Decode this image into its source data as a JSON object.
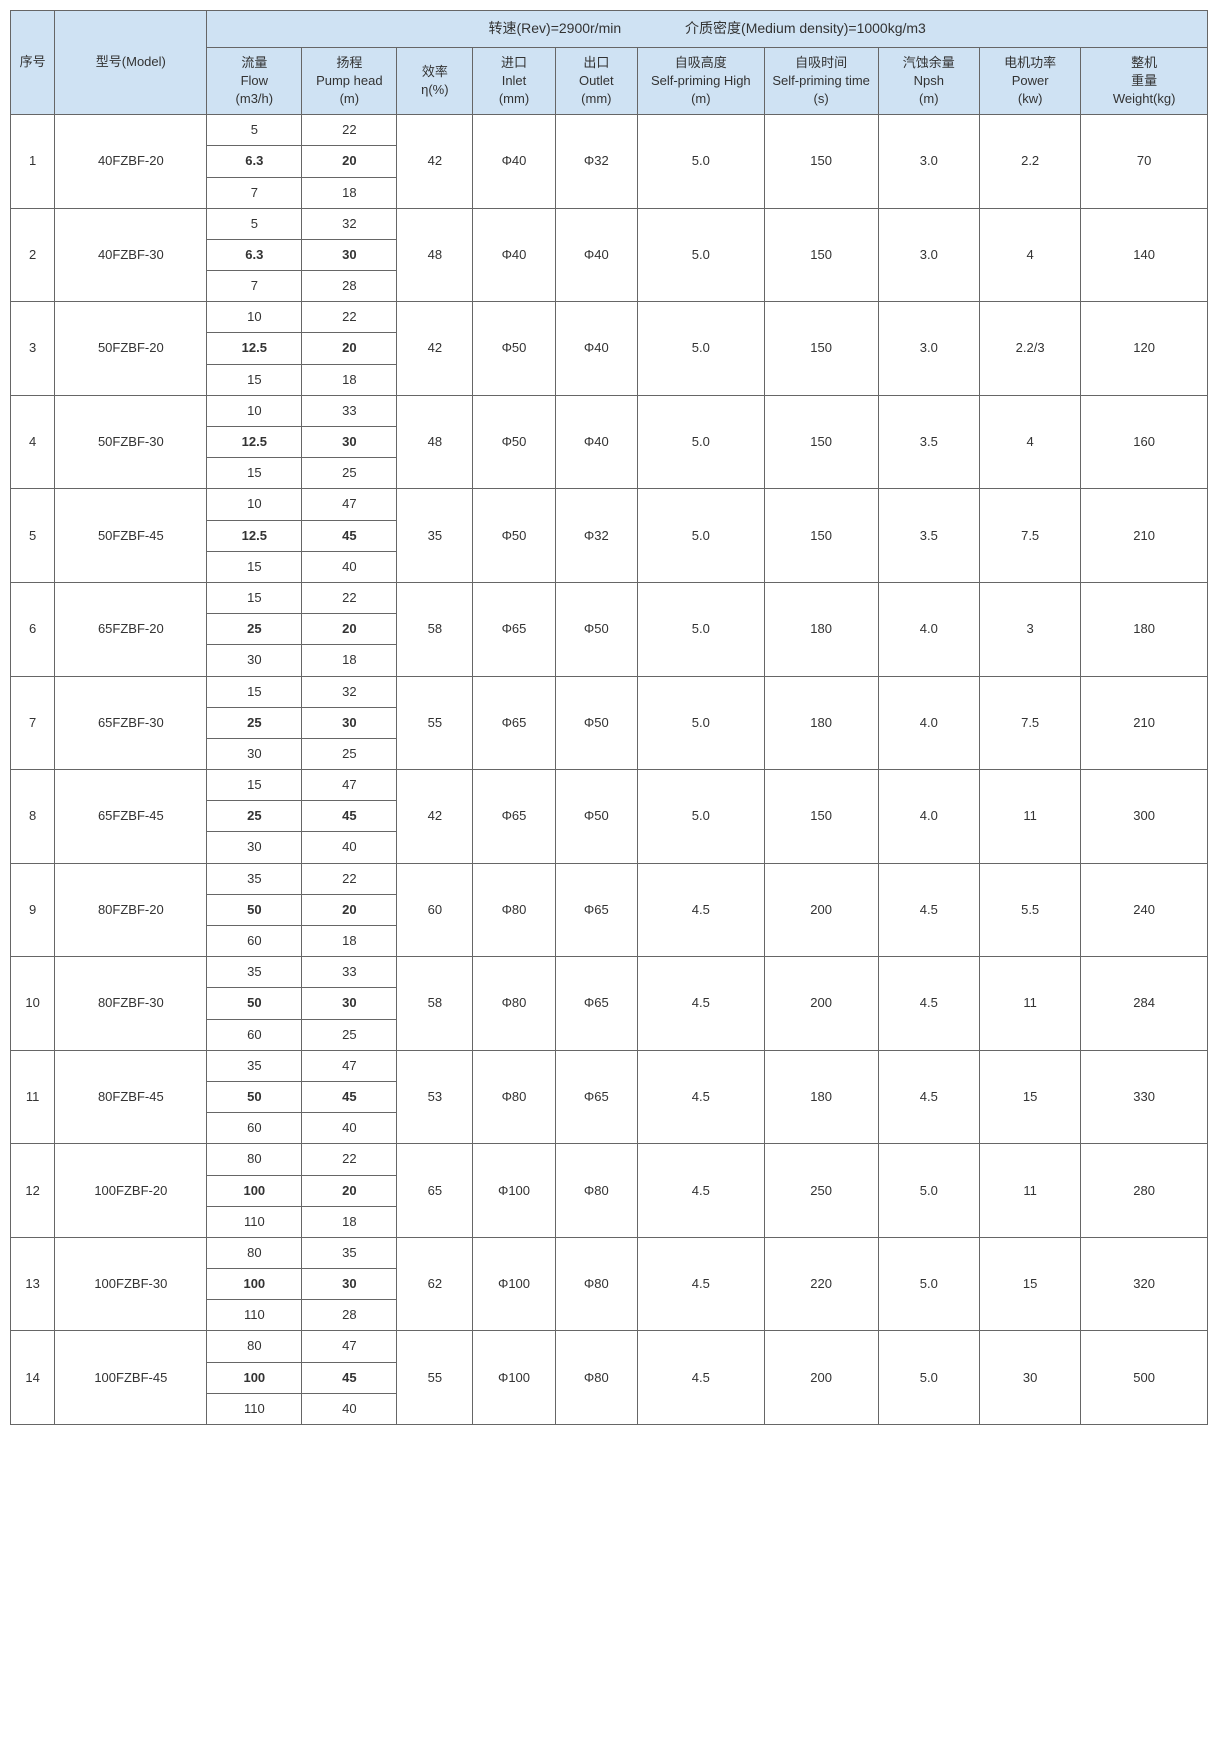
{
  "superHeader": {
    "rev": "转速(Rev)=2900r/min",
    "density": "介质密度(Medium density)=1000kg/m3"
  },
  "headers": {
    "seq": "序号",
    "model": "型号(Model)",
    "flow": "流量\nFlow\n(m3/h)",
    "head": "扬程\nPump head\n(m)",
    "eff": "效率\nη(%)",
    "inlet": "进口\nInlet\n(mm)",
    "outlet": "出口\nOutlet\n(mm)",
    "high": "自吸高度\nSelf-priming High\n(m)",
    "time": "自吸时间\nSelf-priming time (s)",
    "npsh": "汽蚀余量\nNpsh\n(m)",
    "power": "电机功率\nPower\n(kw)",
    "weight": "整机\n重量\nWeight(kg)"
  },
  "styling": {
    "header_bg": "#cfe2f3",
    "border_color": "#666666",
    "text_color": "#333333",
    "font_family": "Arial",
    "base_font_size_pt": 10,
    "bold_row_weight": "bold"
  },
  "rows": [
    {
      "seq": "1",
      "model": "40FZBF-20",
      "flows": [
        "5",
        "6.3",
        "7"
      ],
      "heads": [
        "22",
        "20",
        "18"
      ],
      "eff": "42",
      "inlet": "Φ40",
      "outlet": "Φ32",
      "high": "5.0",
      "time": "150",
      "npsh": "3.0",
      "power": "2.2",
      "weight": "70"
    },
    {
      "seq": "2",
      "model": "40FZBF-30",
      "flows": [
        "5",
        "6.3",
        "7"
      ],
      "heads": [
        "32",
        "30",
        "28"
      ],
      "eff": "48",
      "inlet": "Φ40",
      "outlet": "Φ40",
      "high": "5.0",
      "time": "150",
      "npsh": "3.0",
      "power": "4",
      "weight": "140"
    },
    {
      "seq": "3",
      "model": "50FZBF-20",
      "flows": [
        "10",
        "12.5",
        "15"
      ],
      "heads": [
        "22",
        "20",
        "18"
      ],
      "eff": "42",
      "inlet": "Φ50",
      "outlet": "Φ40",
      "high": "5.0",
      "time": "150",
      "npsh": "3.0",
      "power": "2.2/3",
      "weight": "120"
    },
    {
      "seq": "4",
      "model": "50FZBF-30",
      "flows": [
        "10",
        "12.5",
        "15"
      ],
      "heads": [
        "33",
        "30",
        "25"
      ],
      "eff": "48",
      "inlet": "Φ50",
      "outlet": "Φ40",
      "high": "5.0",
      "time": "150",
      "npsh": "3.5",
      "power": "4",
      "weight": "160"
    },
    {
      "seq": "5",
      "model": "50FZBF-45",
      "flows": [
        "10",
        "12.5",
        "15"
      ],
      "heads": [
        "47",
        "45",
        "40"
      ],
      "eff": "35",
      "inlet": "Φ50",
      "outlet": "Φ32",
      "high": "5.0",
      "time": "150",
      "npsh": "3.5",
      "power": "7.5",
      "weight": "210"
    },
    {
      "seq": "6",
      "model": "65FZBF-20",
      "flows": [
        "15",
        "25",
        "30"
      ],
      "heads": [
        "22",
        "20",
        "18"
      ],
      "eff": "58",
      "inlet": "Φ65",
      "outlet": "Φ50",
      "high": "5.0",
      "time": "180",
      "npsh": "4.0",
      "power": "3",
      "weight": "180"
    },
    {
      "seq": "7",
      "model": "65FZBF-30",
      "flows": [
        "15",
        "25",
        "30"
      ],
      "heads": [
        "32",
        "30",
        "25"
      ],
      "eff": "55",
      "inlet": "Φ65",
      "outlet": "Φ50",
      "high": "5.0",
      "time": "180",
      "npsh": "4.0",
      "power": "7.5",
      "weight": "210"
    },
    {
      "seq": "8",
      "model": "65FZBF-45",
      "flows": [
        "15",
        "25",
        "30"
      ],
      "heads": [
        "47",
        "45",
        "40"
      ],
      "eff": "42",
      "inlet": "Φ65",
      "outlet": "Φ50",
      "high": "5.0",
      "time": "150",
      "npsh": "4.0",
      "power": "11",
      "weight": "300"
    },
    {
      "seq": "9",
      "model": "80FZBF-20",
      "flows": [
        "35",
        "50",
        "60"
      ],
      "heads": [
        "22",
        "20",
        "18"
      ],
      "eff": "60",
      "inlet": "Φ80",
      "outlet": "Φ65",
      "high": "4.5",
      "time": "200",
      "npsh": "4.5",
      "power": "5.5",
      "weight": "240"
    },
    {
      "seq": "10",
      "model": "80FZBF-30",
      "flows": [
        "35",
        "50",
        "60"
      ],
      "heads": [
        "33",
        "30",
        "25"
      ],
      "eff": "58",
      "inlet": "Φ80",
      "outlet": "Φ65",
      "high": "4.5",
      "time": "200",
      "npsh": "4.5",
      "power": "11",
      "weight": "284"
    },
    {
      "seq": "11",
      "model": "80FZBF-45",
      "flows": [
        "35",
        "50",
        "60"
      ],
      "heads": [
        "47",
        "45",
        "40"
      ],
      "eff": "53",
      "inlet": "Φ80",
      "outlet": "Φ65",
      "high": "4.5",
      "time": "180",
      "npsh": "4.5",
      "power": "15",
      "weight": "330"
    },
    {
      "seq": "12",
      "model": "100FZBF-20",
      "flows": [
        "80",
        "100",
        "110"
      ],
      "heads": [
        "22",
        "20",
        "18"
      ],
      "eff": "65",
      "inlet": "Φ100",
      "outlet": "Φ80",
      "high": "4.5",
      "time": "250",
      "npsh": "5.0",
      "power": "11",
      "weight": "280"
    },
    {
      "seq": "13",
      "model": "100FZBF-30",
      "flows": [
        "80",
        "100",
        "110"
      ],
      "heads": [
        "35",
        "30",
        "28"
      ],
      "eff": "62",
      "inlet": "Φ100",
      "outlet": "Φ80",
      "high": "4.5",
      "time": "220",
      "npsh": "5.0",
      "power": "15",
      "weight": "320"
    },
    {
      "seq": "14",
      "model": "100FZBF-45",
      "flows": [
        "80",
        "100",
        "110"
      ],
      "heads": [
        "47",
        "45",
        "40"
      ],
      "eff": "55",
      "inlet": "Φ100",
      "outlet": "Φ80",
      "high": "4.5",
      "time": "200",
      "npsh": "5.0",
      "power": "30",
      "weight": "500"
    }
  ]
}
